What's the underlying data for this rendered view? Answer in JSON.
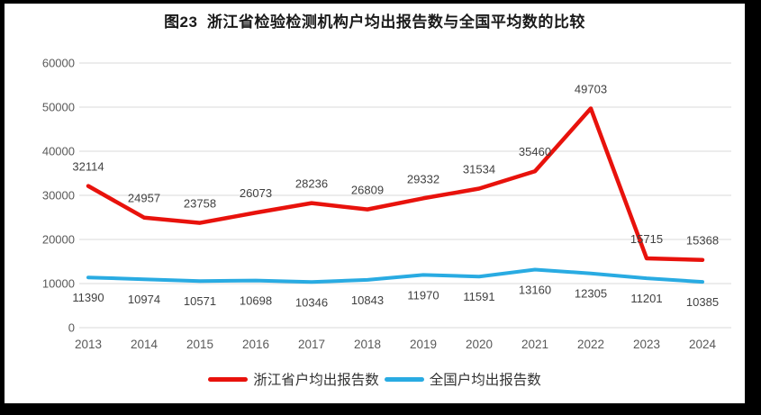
{
  "colors": {
    "zhejiang_red": "#e8120c",
    "national_blue": "#29abe2",
    "grid": "#d9d9d9",
    "axis_text": "#595959",
    "data_label_text": "#404040",
    "title_text": "#1a1a1a",
    "frame": "#000000",
    "background": "#ffffff"
  },
  "chart_data": {
    "type": "line",
    "title": "图23  浙江省检验检测机构户均出报告数与全国平均数的比较",
    "categories": [
      "2013",
      "2014",
      "2015",
      "2016",
      "2017",
      "2018",
      "2019",
      "2020",
      "2021",
      "2022",
      "2023",
      "2024"
    ],
    "series": [
      {
        "name": "浙江省户均出报告数",
        "color_key": "zhejiang_red",
        "label_position": "above",
        "values": [
          32114,
          24957,
          23758,
          26073,
          28236,
          26809,
          29332,
          31534,
          35460,
          49703,
          15715,
          15368
        ]
      },
      {
        "name": "全国户均出报告数",
        "color_key": "national_blue",
        "label_position": "below",
        "values": [
          11390,
          10974,
          10571,
          10698,
          10346,
          10843,
          11970,
          11591,
          13160,
          12305,
          11201,
          10385
        ]
      }
    ],
    "xlabel": "",
    "ylabel": "",
    "ylim": [
      0,
      60000
    ],
    "yticks": [
      0,
      10000,
      20000,
      30000,
      40000,
      50000,
      60000
    ],
    "grid": true,
    "data_labels": true,
    "legend_position": "bottom"
  }
}
